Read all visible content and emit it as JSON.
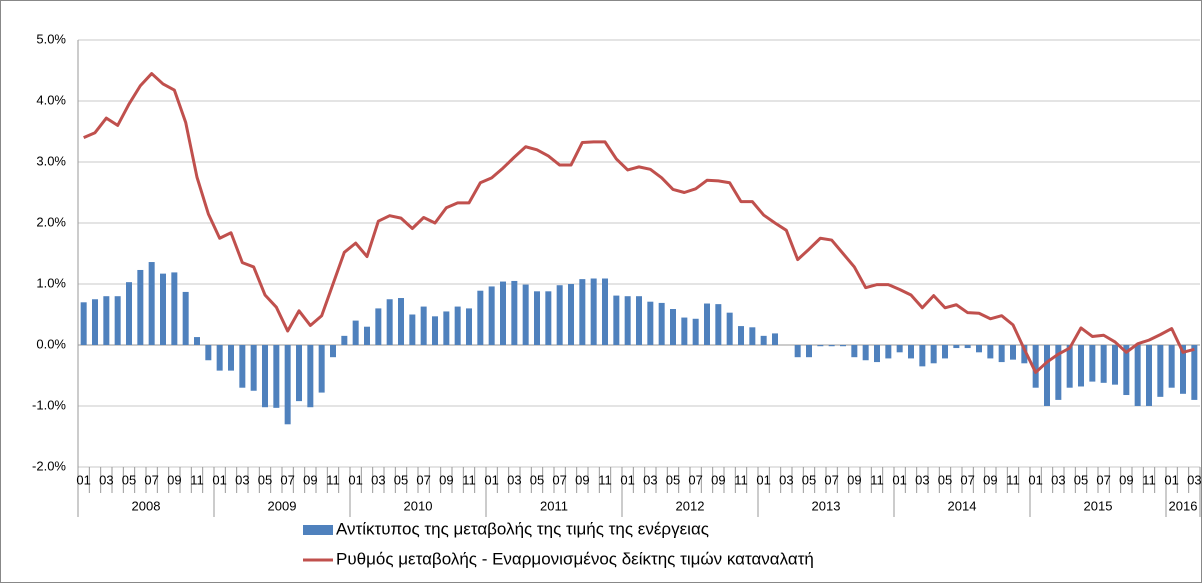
{
  "chart_data": {
    "type": "bar-line",
    "categories": [
      "01",
      null,
      "03",
      null,
      "05",
      null,
      "07",
      null,
      "09",
      null,
      "11",
      null,
      "01",
      null,
      "03",
      null,
      "05",
      null,
      "07",
      null,
      "09",
      null,
      "11",
      null,
      "01",
      null,
      "03",
      null,
      "05",
      null,
      "07",
      null,
      "09",
      null,
      "11",
      null,
      "01",
      null,
      "03",
      null,
      "05",
      null,
      "07",
      null,
      "09",
      null,
      "11",
      null,
      "01",
      null,
      "03",
      null,
      "05",
      null,
      "07",
      null,
      "09",
      null,
      "11",
      null,
      "01",
      null,
      "03",
      null,
      "05",
      null,
      "07",
      null,
      "09",
      null,
      "11",
      null,
      "01",
      null,
      "03",
      null,
      "05",
      null,
      "07",
      null,
      "09",
      null,
      "11",
      null,
      "01",
      null,
      "03",
      null,
      "05",
      null,
      "07",
      null,
      "09",
      null,
      "11",
      null,
      "01",
      null,
      "03"
    ],
    "x_groups": [
      "2008",
      "2009",
      "2010",
      "2011",
      "2012",
      "2013",
      "2014",
      "2015",
      "2016"
    ],
    "series": [
      {
        "name": "Αντίκτυπος της μεταβολής της τιμής της ενέργειας",
        "type": "bar",
        "color": "#4f81bd",
        "values": [
          0.7,
          0.75,
          0.8,
          0.8,
          1.03,
          1.23,
          1.36,
          1.17,
          1.19,
          0.87,
          0.13,
          -0.25,
          -0.42,
          -0.42,
          -0.7,
          -0.75,
          -1.02,
          -1.03,
          -1.3,
          -0.92,
          -1.02,
          -0.78,
          -0.2,
          0.15,
          0.4,
          0.3,
          0.6,
          0.75,
          0.77,
          0.5,
          0.63,
          0.47,
          0.55,
          0.63,
          0.6,
          0.89,
          0.96,
          1.04,
          1.05,
          0.99,
          0.88,
          0.88,
          0.98,
          1.0,
          1.08,
          1.09,
          1.09,
          0.81,
          0.8,
          0.8,
          0.71,
          0.69,
          0.59,
          0.45,
          0.43,
          0.68,
          0.67,
          0.53,
          0.31,
          0.29,
          0.15,
          0.19,
          0.0,
          -0.2,
          -0.2,
          -0.02,
          -0.02,
          -0.02,
          -0.2,
          -0.25,
          -0.28,
          -0.22,
          -0.12,
          -0.22,
          -0.35,
          -0.3,
          -0.22,
          -0.05,
          -0.05,
          -0.12,
          -0.22,
          -0.28,
          -0.24,
          -0.3,
          -0.7,
          -1.0,
          -0.9,
          -0.7,
          -0.68,
          -0.6,
          -0.62,
          -0.65,
          -0.82,
          -1.0,
          -1.0,
          -0.85,
          -0.7,
          -0.8,
          -0.9
        ]
      },
      {
        "name": "Ρυθμός μεταβολής - Εναρμονισμένος  δείκτης τιμών καταναλατή",
        "type": "line",
        "color": "#c0504d",
        "values": [
          3.4,
          3.48,
          3.72,
          3.6,
          3.95,
          4.25,
          4.45,
          4.28,
          4.18,
          3.65,
          2.75,
          2.15,
          1.75,
          1.84,
          1.35,
          1.28,
          0.82,
          0.62,
          0.23,
          0.56,
          0.32,
          0.48,
          1.0,
          1.52,
          1.67,
          1.45,
          2.03,
          2.12,
          2.08,
          1.91,
          2.09,
          2.0,
          2.25,
          2.33,
          2.33,
          2.66,
          2.74,
          2.9,
          3.08,
          3.25,
          3.2,
          3.1,
          2.95,
          2.95,
          3.32,
          3.33,
          3.33,
          3.05,
          2.87,
          2.92,
          2.88,
          2.74,
          2.55,
          2.5,
          2.56,
          2.7,
          2.69,
          2.66,
          2.35,
          2.35,
          2.13,
          2.0,
          1.88,
          1.4,
          1.57,
          1.75,
          1.72,
          1.5,
          1.28,
          0.94,
          0.99,
          0.99,
          0.91,
          0.82,
          0.61,
          0.81,
          0.61,
          0.66,
          0.53,
          0.52,
          0.43,
          0.48,
          0.33,
          -0.07,
          -0.45,
          -0.28,
          -0.15,
          -0.05,
          0.28,
          0.14,
          0.16,
          0.05,
          -0.12,
          0.02,
          0.08,
          0.17,
          0.27,
          -0.12,
          -0.07
        ]
      }
    ],
    "ylim": [
      -2,
      5
    ],
    "yticks": [
      {
        "value": -2,
        "label": "-2.0%"
      },
      {
        "value": -1,
        "label": "-1.0%"
      },
      {
        "value": 0,
        "label": "0.0%"
      },
      {
        "value": 1,
        "label": "1.0%"
      },
      {
        "value": 2,
        "label": "2.0%"
      },
      {
        "value": 3,
        "label": "3.0%"
      },
      {
        "value": 4,
        "label": "4.0%"
      },
      {
        "value": 5,
        "label": "5.0%"
      }
    ],
    "grid": true,
    "legend": "bottom"
  }
}
